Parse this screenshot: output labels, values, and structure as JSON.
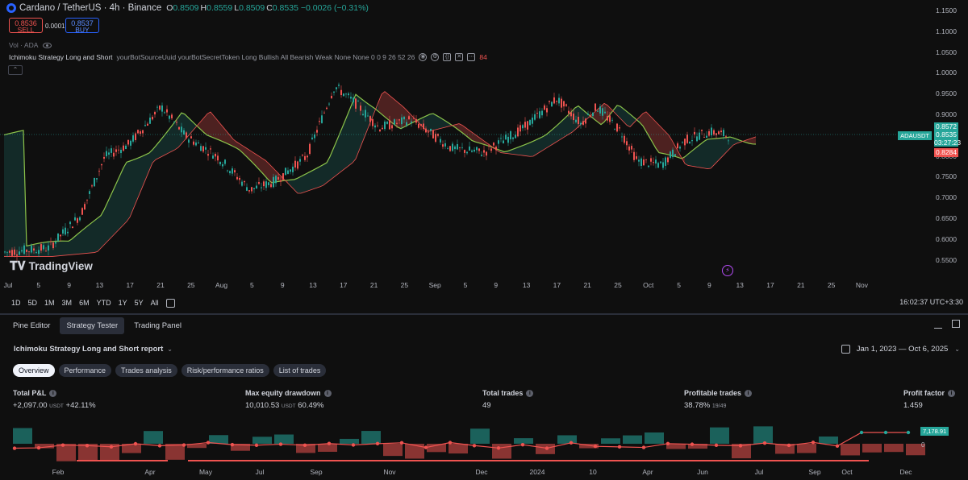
{
  "symbol": {
    "title": "Cardano / TetherUS · 4h · Binance",
    "icon": "cardano-logo",
    "ohlc": [
      {
        "label": "O",
        "value": "0.8509"
      },
      {
        "label": "H",
        "value": "0.8559"
      },
      {
        "label": "L",
        "value": "0.8509"
      },
      {
        "label": "C",
        "value": "0.8535"
      }
    ],
    "change": "−0.0026 (−0.31%)"
  },
  "trade": {
    "sell_price": "0.8536",
    "sell_label": "SELL",
    "spread": "0.0001",
    "buy_price": "0.8537",
    "buy_label": "BUY"
  },
  "volume_label": "Vol · ADA",
  "strategy": {
    "name": "Ichimoku Strategy Long and Short",
    "params": "yourBotSourceUuid yourBotSecretToken Long Bullish All Bearish Weak None None 0 0 9 26 52 26",
    "badge": "84"
  },
  "price_axis": {
    "ticks": [
      "1.1500",
      "1.1000",
      "1.0500",
      "1.0000",
      "0.9500",
      "0.9000",
      "0.8500",
      "0.8000",
      "0.7500",
      "0.7000",
      "0.6500",
      "0.6000",
      "0.5500"
    ],
    "tag_high": "0.8572",
    "tag_last": "0.8535",
    "tag_countdown": "03:27:23",
    "tag_low": "0.8284",
    "symbol_label": "ADAUSDT",
    "range": [
      0.525,
      1.175
    ]
  },
  "time_axis": [
    "Jul",
    "5",
    "9",
    "13",
    "17",
    "21",
    "25",
    "Aug",
    "5",
    "9",
    "13",
    "17",
    "21",
    "25",
    "Sep",
    "5",
    "9",
    "13",
    "17",
    "21",
    "25",
    "Oct",
    "5",
    "9",
    "13",
    "17",
    "21",
    "25",
    "Nov"
  ],
  "branding": "TradingView",
  "range_buttons": [
    "1D",
    "5D",
    "1M",
    "3M",
    "6M",
    "YTD",
    "1Y",
    "5Y",
    "All"
  ],
  "clock": "16:02:37 UTC+3:30",
  "panel_tabs": [
    "Pine Editor",
    "Strategy Tester",
    "Trading Panel"
  ],
  "report": {
    "title": "Ichimoku Strategy Long and Short report",
    "date_range": "Jan 1, 2023 — Oct 6, 2025",
    "sub_tabs": [
      "Overview",
      "Performance",
      "Trades analysis",
      "Risk/performance ratios",
      "List of trades"
    ]
  },
  "metrics": {
    "pnl": {
      "label": "Total P&L",
      "value": "+2,097.00",
      "unit": "USDT",
      "pct": "+42.11%"
    },
    "drawdown": {
      "label": "Max equity drawdown",
      "value": "10,010.53",
      "unit": "USDT",
      "pct": "60.49%"
    },
    "trades": {
      "label": "Total trades",
      "value": "49"
    },
    "profitable": {
      "label": "Profitable trades",
      "value": "38.78%",
      "sub": "19/49"
    },
    "profit_factor": {
      "label": "Profit factor",
      "value": "1.459"
    }
  },
  "equity": {
    "tag": "7,178.91",
    "zero": "0",
    "x_labels": [
      "Feb",
      "Apr",
      "May",
      "Jul",
      "Sep",
      "Nov",
      "Dec",
      "2024",
      "10",
      "Apr",
      "Jun",
      "Jul",
      "Sep",
      "Oct",
      "Dec"
    ]
  },
  "colors": {
    "bullish": "#26a69a",
    "bearish": "#ef5350",
    "conversion": "#8bc34a",
    "accent": "#2962ff"
  }
}
